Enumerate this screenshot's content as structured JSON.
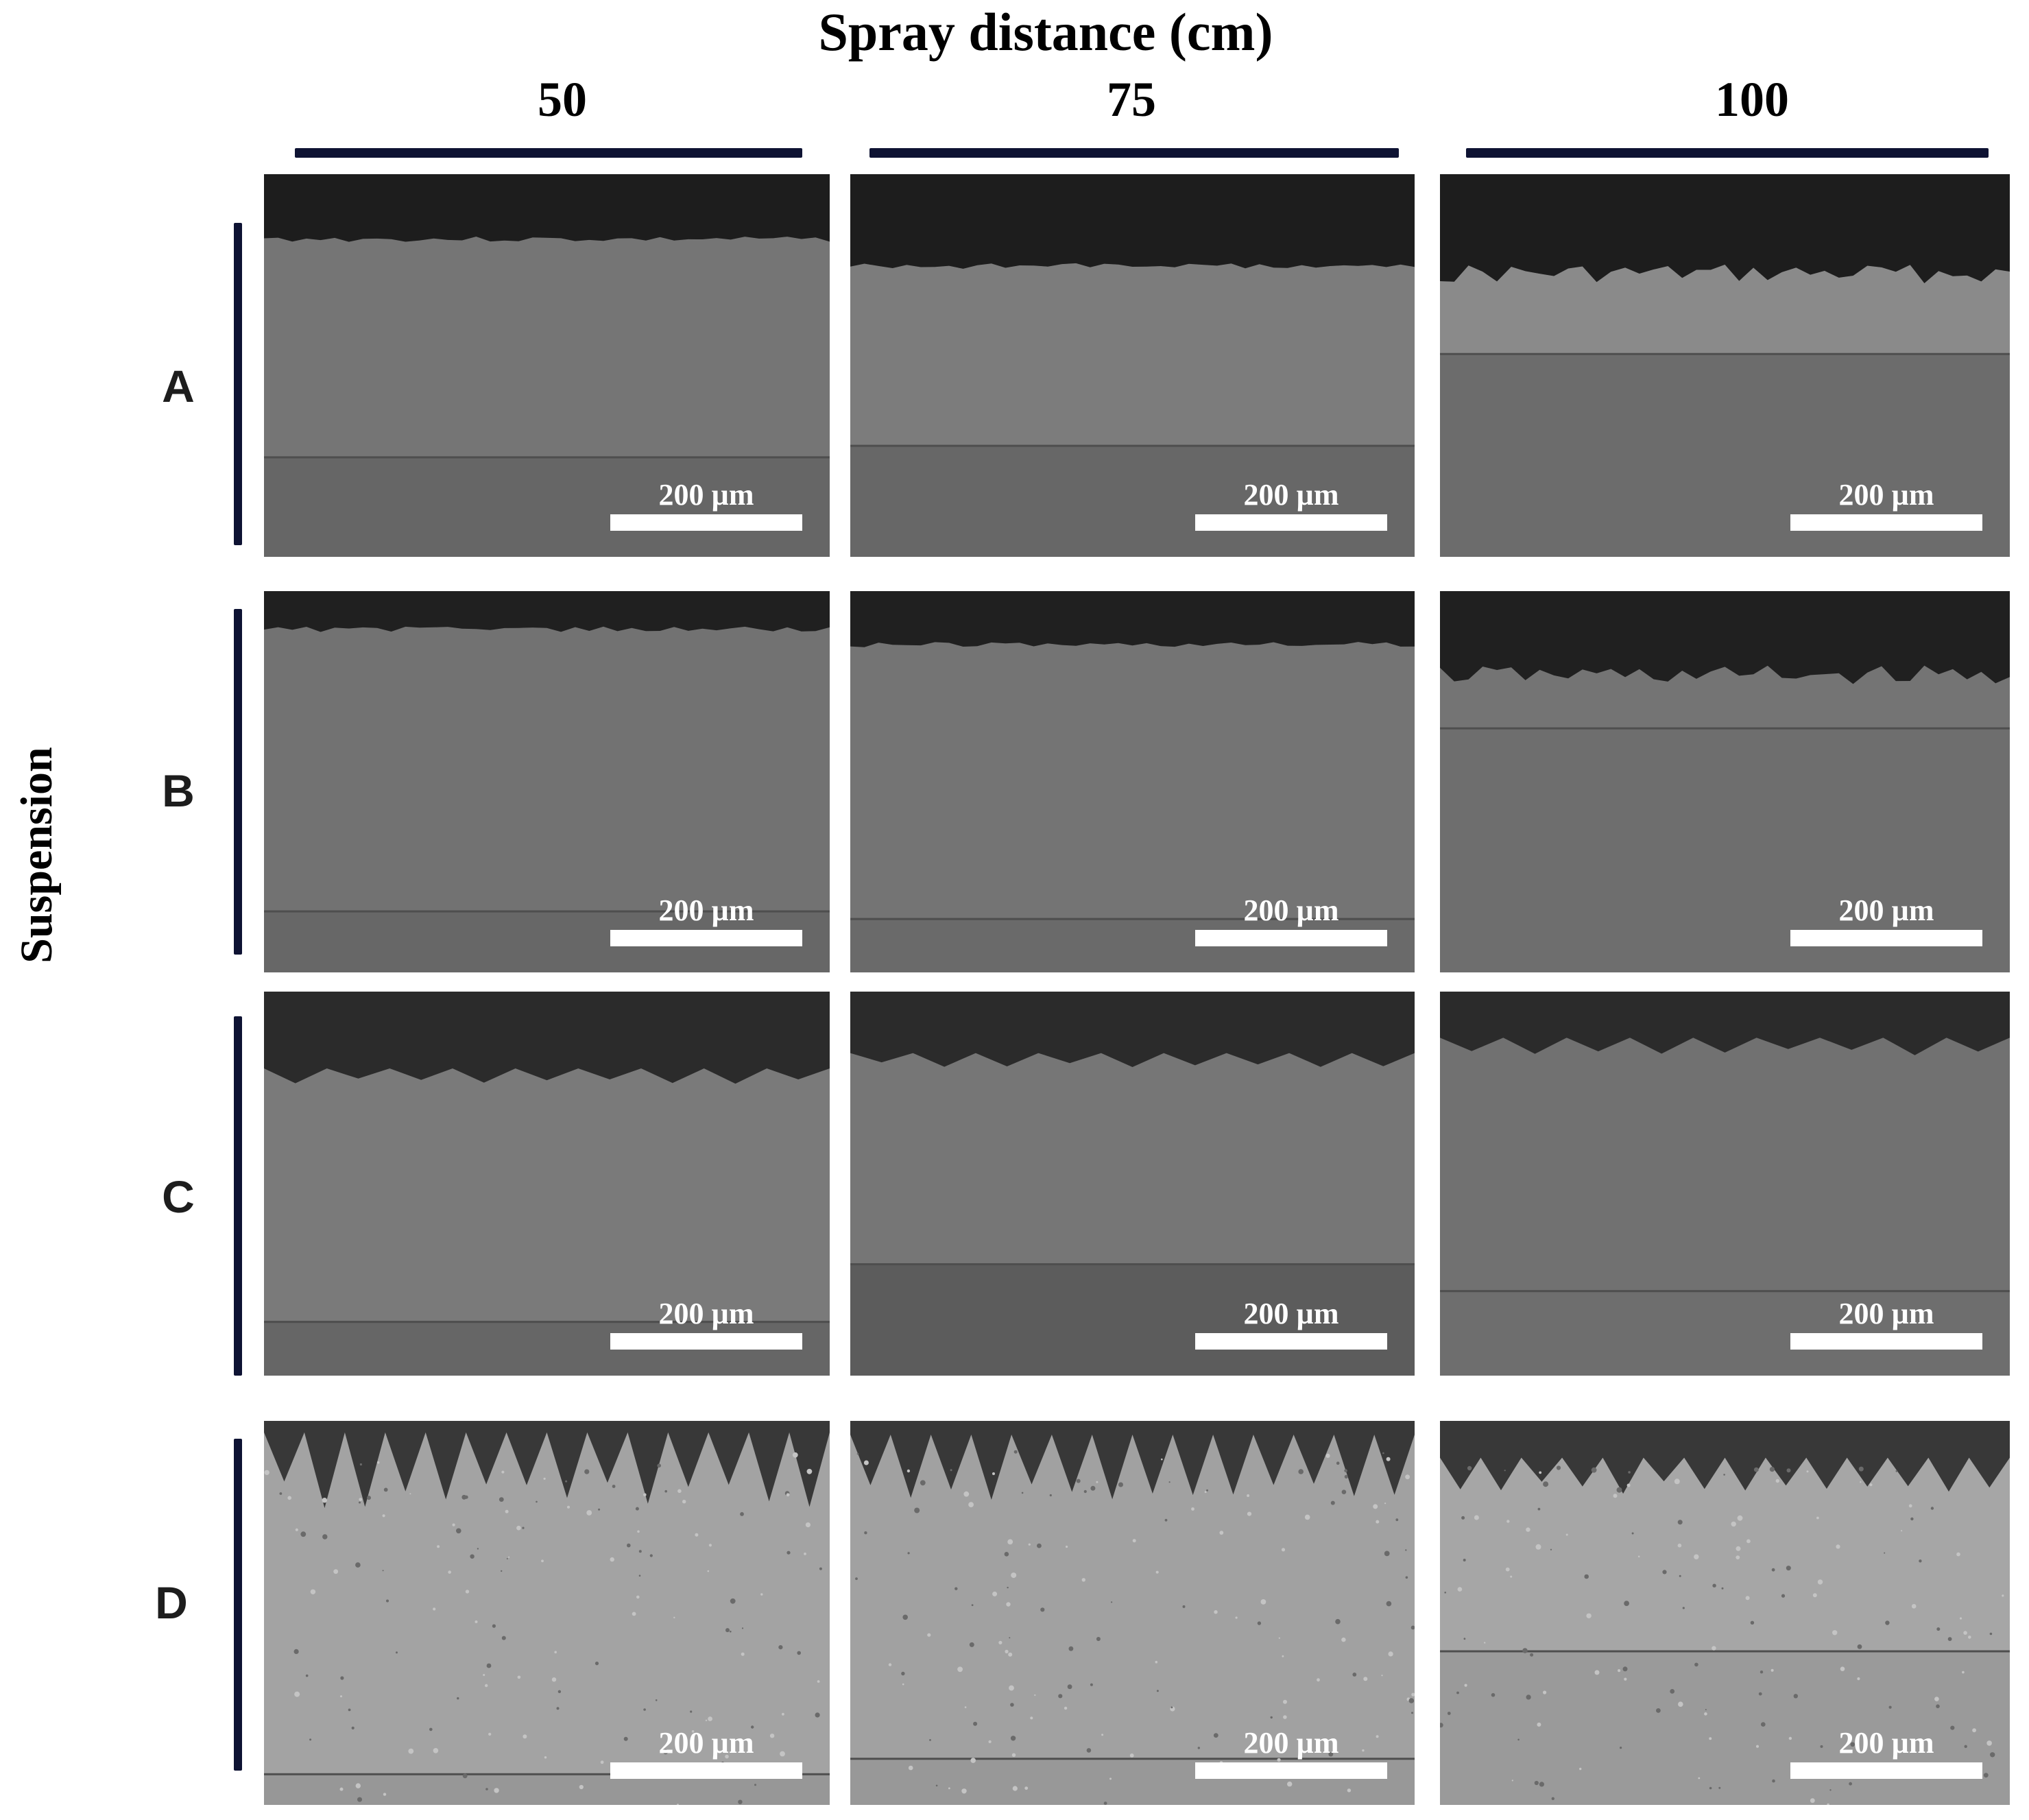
{
  "figure": {
    "column_axis_title": "Spray distance (cm)",
    "row_axis_title": "Suspension",
    "columns": [
      "50",
      "75",
      "100"
    ],
    "rows": [
      "A",
      "B",
      "C",
      "D"
    ],
    "scale_label": "200 µm"
  },
  "colors": {
    "resin": "#1b1b1b",
    "coating": "#747474",
    "substrate": "#646464",
    "bars": "#0e1333"
  }
}
